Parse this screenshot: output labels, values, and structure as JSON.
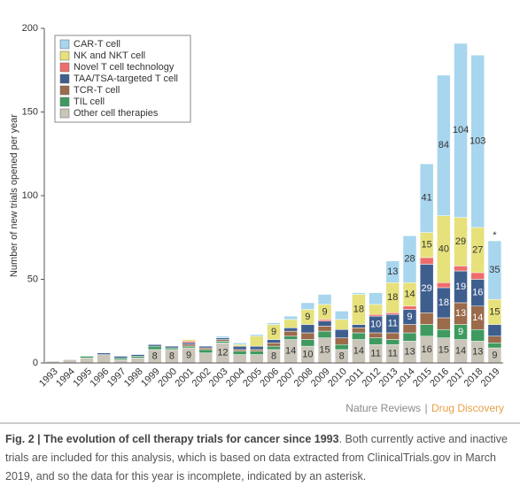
{
  "chart_data": {
    "type": "stacked_bar",
    "y_label": "Number of new trials opened per year",
    "categories": [
      "1993",
      "1994",
      "1995",
      "1996",
      "1997",
      "1998",
      "1999",
      "2000",
      "2001",
      "2002",
      "2003",
      "2004",
      "2005",
      "2006",
      "2007",
      "2008",
      "2009",
      "2010",
      "2011",
      "2012",
      "2013",
      "2014",
      "2015",
      "2016",
      "2017",
      "2018",
      "2019"
    ],
    "series": [
      {
        "name": "Other cell therapies",
        "color": "#c9c5b9",
        "values": [
          1,
          2,
          3,
          5,
          2,
          3,
          8,
          8,
          9,
          6,
          12,
          5,
          5,
          8,
          14,
          10,
          15,
          8,
          14,
          11,
          11,
          13,
          16,
          15,
          14,
          13,
          9
        ]
      },
      {
        "name": "TIL cell",
        "color": "#3f9a5f",
        "values": [
          0,
          0,
          1,
          0,
          1,
          1,
          2,
          1,
          1,
          2,
          1,
          2,
          2,
          2,
          2,
          4,
          4,
          3,
          4,
          4,
          3,
          5,
          7,
          5,
          9,
          7,
          3
        ]
      },
      {
        "name": "TCR-T cell",
        "color": "#9b6b4b",
        "values": [
          0,
          0,
          0,
          0,
          0,
          0,
          0,
          0,
          1,
          1,
          1,
          1,
          1,
          2,
          3,
          4,
          3,
          4,
          3,
          3,
          4,
          5,
          7,
          7,
          13,
          14,
          4
        ]
      },
      {
        "name": "TAA/TSA-targeted T cell",
        "color": "#3e5f8e",
        "values": [
          0,
          0,
          0,
          1,
          1,
          1,
          1,
          1,
          1,
          1,
          1,
          2,
          2,
          2,
          2,
          5,
          3,
          5,
          2,
          10,
          11,
          9,
          29,
          18,
          19,
          16,
          7
        ]
      },
      {
        "name": "Novel T cell technology",
        "color": "#ee6d6d",
        "values": [
          0,
          0,
          0,
          0,
          0,
          0,
          0,
          0,
          1,
          0,
          0,
          0,
          0,
          0,
          0,
          0,
          1,
          0,
          0,
          1,
          1,
          2,
          4,
          3,
          3,
          4,
          0
        ]
      },
      {
        "name": "NK and NKT cell",
        "color": "#e6e17b",
        "values": [
          0,
          0,
          0,
          0,
          0,
          0,
          0,
          0,
          1,
          0,
          0,
          1,
          6,
          9,
          5,
          9,
          9,
          6,
          18,
          6,
          18,
          14,
          15,
          40,
          29,
          27,
          15
        ]
      },
      {
        "name": "CAR-T cell",
        "color": "#a8d6ee",
        "values": [
          0,
          0,
          0,
          0,
          0,
          0,
          0,
          0,
          0,
          0,
          1,
          1,
          1,
          1,
          2,
          4,
          6,
          5,
          1,
          7,
          13,
          28,
          41,
          84,
          104,
          103,
          35
        ]
      }
    ],
    "ylim": [
      0,
      200
    ],
    "yticks": [
      0,
      50,
      100,
      150,
      200
    ],
    "annotation": "*",
    "source_left": "Nature Reviews",
    "source_sep": "|",
    "source_right": "Drug Discovery",
    "caption_label": "Fig. 2 |",
    "caption_title": "The evolution of cell therapy trials for cancer since 1993",
    "caption_text": ". Both currently active and inactive trials are included for this analysis, which is based on data extracted from ClinicalTrials.gov in March 2019, and so the data for this year is incomplete, indicated by an asterisk."
  }
}
